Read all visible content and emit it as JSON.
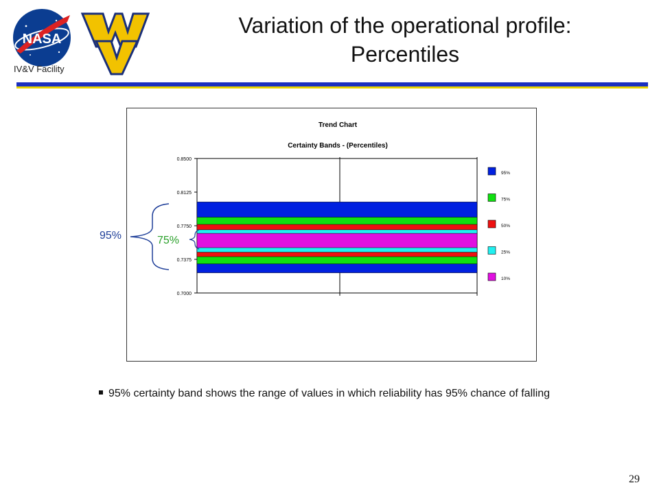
{
  "header": {
    "title_line1": "Variation of the operational profile:",
    "title_line2": "Percentiles",
    "facility_label": "IV&V Facility",
    "nasa_logo_text": "NASA",
    "rule_colors": {
      "blue": "#1a2fbf",
      "yellow": "#e8d400"
    }
  },
  "chart_data": {
    "type": "area",
    "title": "Trend Chart",
    "subtitle": "Certainty Bands - (Percentiles)",
    "ylim": [
      0.7,
      0.85
    ],
    "yticks": [
      "0.8500",
      "0.8125",
      "0.7750",
      "0.7375",
      "0.7000"
    ],
    "ytick_values": [
      0.85,
      0.8125,
      0.775,
      0.7375,
      0.7
    ],
    "grid": "vertical",
    "legend_position": "right",
    "series": [
      {
        "name": "95%",
        "color": "#0020e0",
        "range": [
          0.7225,
          0.8015
        ]
      },
      {
        "name": "75%",
        "color": "#10e010",
        "range": [
          0.7325,
          0.7845
        ]
      },
      {
        "name": "50%",
        "color": "#ee1010",
        "range": [
          0.7405,
          0.7765
        ]
      },
      {
        "name": "25%",
        "color": "#20f0f0",
        "range": [
          0.7455,
          0.7705
        ]
      },
      {
        "name": "10%",
        "color": "#e010e0",
        "range": [
          0.7505,
          0.7665
        ]
      }
    ]
  },
  "annotations": {
    "band95_label": "95%",
    "band75_label": "75%",
    "band95_color": "#1f3f99",
    "band75_color": "#2aa02a"
  },
  "bullet": {
    "text": "95% certainty band shows the range of values in which reliability has 95% chance of falling"
  },
  "footer": {
    "page_number": "29"
  }
}
